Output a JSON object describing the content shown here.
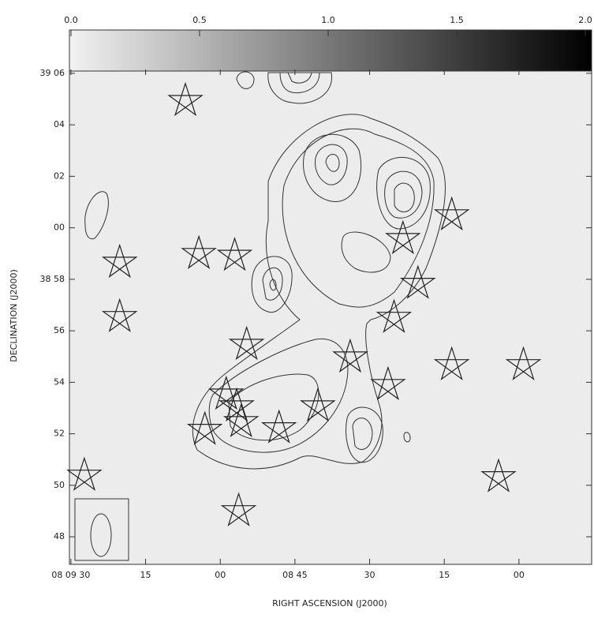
{
  "chart_data": {
    "type": "contour",
    "xlabel": "RIGHT ASCENSION (J2000)",
    "ylabel": "DECLINATION (J2000)",
    "xlim": [
      90.3,
      -14.6
    ],
    "ylim": [
      46.93,
      66.15
    ],
    "xticks": [
      {
        "value": 90,
        "label": "08 09 30"
      },
      {
        "value": 75,
        "label": "15"
      },
      {
        "value": 60,
        "label": "00"
      },
      {
        "value": 45,
        "label": "08 45"
      },
      30,
      15,
      {
        "value": 0,
        "label": "00"
      }
    ],
    "yticks": [
      {
        "value": 66,
        "label": "39 06"
      },
      {
        "value": 64,
        "label": "04"
      },
      {
        "value": 62,
        "label": "02"
      },
      {
        "value": 60,
        "label": "00"
      },
      {
        "value": 58,
        "label": "38 58"
      },
      56,
      54,
      52,
      50,
      48
    ],
    "colorbar": {
      "lim": [
        0,
        2
      ],
      "ticks": [
        {
          "value": 0,
          "label": "0.0"
        },
        0.5,
        {
          "value": 1,
          "label": "1.0"
        },
        1.5,
        {
          "value": 2,
          "label": "2.0"
        }
      ]
    },
    "sources": {
      "x": [
        67.0,
        80.2,
        80.2,
        64.3,
        57.1,
        54.7,
        13.5,
        23.3,
        20.3,
        25.1,
        33.9,
        26.3,
        13.5,
        -0.9,
        40.4,
        58.8,
        56.7,
        63.1,
        55.8,
        48.2,
        87.3,
        4.1,
        56.3
      ],
      "y": [
        64.93,
        58.65,
        56.54,
        58.99,
        58.92,
        55.46,
        60.49,
        59.57,
        57.83,
        56.51,
        54.97,
        53.9,
        54.67,
        54.67,
        53.07,
        53.53,
        53.07,
        52.16,
        52.46,
        52.22,
        50.38,
        50.32,
        49.0
      ]
    }
  }
}
